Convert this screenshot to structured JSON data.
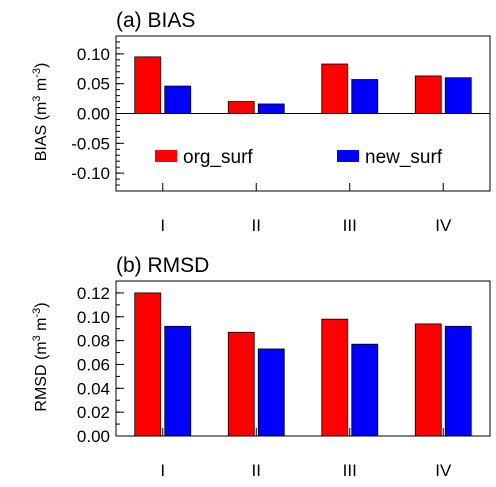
{
  "chart_data": [
    {
      "type": "bar",
      "title": "(a) BIAS",
      "ylabel_main": "BIAS (m",
      "ylabel_sup1": "3",
      "ylabel_mid": " m",
      "ylabel_sup2": "-3",
      "ylabel_end": ")",
      "categories": [
        "I",
        "II",
        "III",
        "IV"
      ],
      "ylim": [
        -0.13,
        0.13
      ],
      "yticks": [
        0.1,
        0.05,
        0.0,
        -0.05,
        -0.1
      ],
      "ytick_labels": [
        "0.10",
        "0.05",
        "0.00",
        "-0.05",
        "-0.10"
      ],
      "legend": "inside-bottom",
      "series": [
        {
          "name": "org_surf",
          "color": "#ff0000",
          "values": [
            0.095,
            0.02,
            0.083,
            0.063
          ]
        },
        {
          "name": "new_surf",
          "color": "#0000ff",
          "values": [
            0.046,
            0.016,
            0.057,
            0.06
          ]
        }
      ]
    },
    {
      "type": "bar",
      "title": "(b) RMSD",
      "ylabel_main": "RMSD (m",
      "ylabel_sup1": "3",
      "ylabel_mid": " m",
      "ylabel_sup2": "-3",
      "ylabel_end": ")",
      "categories": [
        "I",
        "II",
        "III",
        "IV"
      ],
      "ylim": [
        0.0,
        0.13
      ],
      "yticks": [
        0.12,
        0.1,
        0.08,
        0.06,
        0.04,
        0.02,
        0.0
      ],
      "ytick_labels": [
        "0.12",
        "0.10",
        "0.08",
        "0.06",
        "0.04",
        "0.02",
        "0.00"
      ],
      "series": [
        {
          "name": "org_surf",
          "color": "#ff0000",
          "values": [
            0.12,
            0.087,
            0.098,
            0.094
          ]
        },
        {
          "name": "new_surf",
          "color": "#0000ff",
          "values": [
            0.092,
            0.073,
            0.077,
            0.092
          ]
        }
      ]
    }
  ]
}
